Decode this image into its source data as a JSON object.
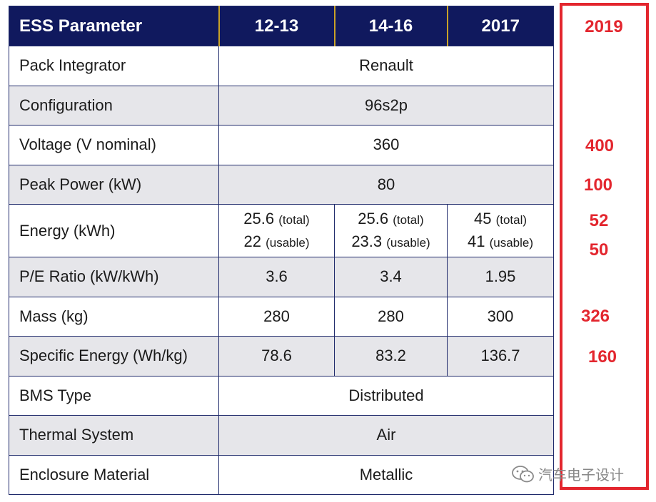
{
  "table": {
    "headers": [
      "ESS Parameter",
      "12-13",
      "14-16",
      "2017"
    ],
    "rows": {
      "pack_integrator": {
        "label": "Pack Integrator",
        "value": "Renault"
      },
      "configuration": {
        "label": "Configuration",
        "value": "96s2p"
      },
      "voltage": {
        "label": "Voltage  (V nominal)",
        "value": "360"
      },
      "peak_power": {
        "label": "Peak Power  (kW)",
        "value": "80"
      },
      "energy": {
        "label": "Energy  (kWh)",
        "c1": {
          "total": "25.6",
          "usable": "22"
        },
        "c2": {
          "total": "25.6",
          "usable": "23.3"
        },
        "c3": {
          "total": "45",
          "usable": "41"
        },
        "total_suffix": "(total)",
        "usable_suffix": "(usable)"
      },
      "pe_ratio": {
        "label": "P/E Ratio  (kW/kWh)",
        "values": [
          "3.6",
          "3.4",
          "1.95"
        ]
      },
      "mass": {
        "label": "Mass  (kg)",
        "values": [
          "280",
          "280",
          "300"
        ]
      },
      "specific_energy": {
        "label": "Specific Energy  (Wh/kg)",
        "values": [
          "78.6",
          "83.2",
          "136.7"
        ]
      },
      "bms_type": {
        "label": "BMS Type",
        "value": "Distributed"
      },
      "thermal_system": {
        "label": "Thermal  System",
        "value": "Air"
      },
      "enclosure_material": {
        "label": "Enclosure  Material",
        "value": "Metallic"
      }
    }
  },
  "annotation": {
    "year": "2019",
    "voltage": "400",
    "peak_power": "100",
    "energy_total": "52",
    "energy_usable": "50",
    "mass": "326",
    "specific_energy": "160",
    "color": "#e3262e"
  },
  "watermark": {
    "text": "汽车电子设计",
    "icon": "wechat-icon"
  }
}
